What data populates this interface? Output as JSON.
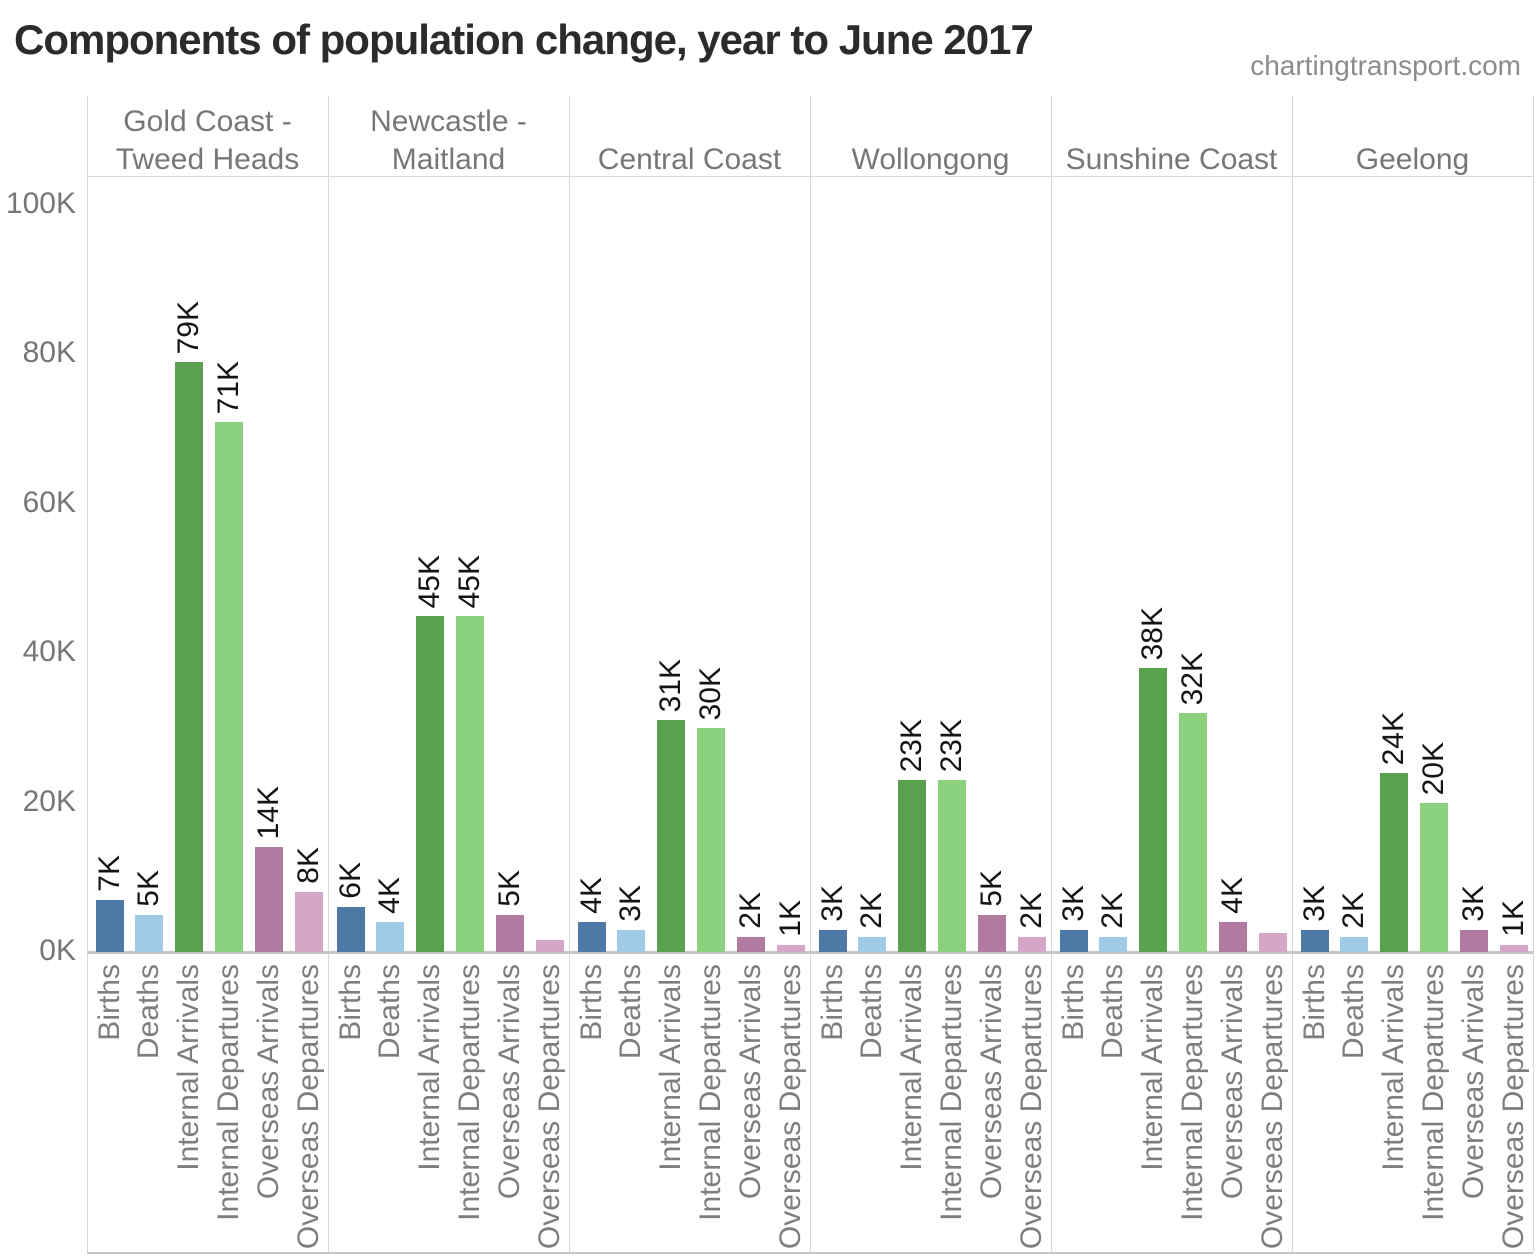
{
  "title": "Components of population change, year to June 2017",
  "watermark": "chartingtransport.com",
  "chart_data": {
    "type": "bar",
    "title": "Components of population change, year to June 2017",
    "unit": "thousands of people",
    "grid": "off",
    "y_axis": {
      "tick_labels": [
        "0K",
        "20K",
        "40K",
        "60K",
        "80K",
        "100K"
      ],
      "tick_values": [
        0,
        20,
        40,
        60,
        80,
        100
      ],
      "range_max_k": 104
    },
    "categories": [
      "Births",
      "Deaths",
      "Internal Arrivals",
      "Internal Departures",
      "Overseas Arrivals",
      "Overseas Departures"
    ],
    "category_colors": [
      "#4e79a7",
      "#a0cbe8",
      "#59a14f",
      "#8cd17d",
      "#b07aa1",
      "#d4a6c8"
    ],
    "groups": [
      {
        "name": "Gold Coast - Tweed Heads",
        "name_lines": [
          "Gold Coast -",
          "Tweed Heads"
        ],
        "values_k": [
          7,
          5,
          79,
          71,
          14,
          8
        ],
        "labels": [
          "7K",
          "5K",
          "79K",
          "71K",
          "14K",
          "8K"
        ]
      },
      {
        "name": "Newcastle - Maitland",
        "name_lines": [
          "Newcastle -",
          "Maitland"
        ],
        "values_k": [
          6,
          4,
          45,
          45,
          5,
          1.6
        ],
        "labels": [
          "6K",
          "4K",
          "45K",
          "45K",
          "5K",
          ""
        ]
      },
      {
        "name": "Central Coast",
        "name_lines": [
          "Central Coast"
        ],
        "values_k": [
          4,
          3,
          31,
          30,
          2,
          1
        ],
        "labels": [
          "4K",
          "3K",
          "31K",
          "30K",
          "2K",
          "1K"
        ]
      },
      {
        "name": "Wollongong",
        "name_lines": [
          "Wollongong"
        ],
        "values_k": [
          3,
          2,
          23,
          23,
          5,
          2
        ],
        "labels": [
          "3K",
          "2K",
          "23K",
          "23K",
          "5K",
          "2K"
        ]
      },
      {
        "name": "Sunshine Coast",
        "name_lines": [
          "Sunshine Coast"
        ],
        "values_k": [
          3,
          2,
          38,
          32,
          4,
          2.5
        ],
        "labels": [
          "3K",
          "2K",
          "38K",
          "32K",
          "4K",
          ""
        ]
      },
      {
        "name": "Geelong",
        "name_lines": [
          "Geelong"
        ],
        "values_k": [
          3,
          2,
          24,
          20,
          3,
          1
        ],
        "labels": [
          "3K",
          "2K",
          "24K",
          "20K",
          "3K",
          "1K"
        ]
      }
    ]
  }
}
